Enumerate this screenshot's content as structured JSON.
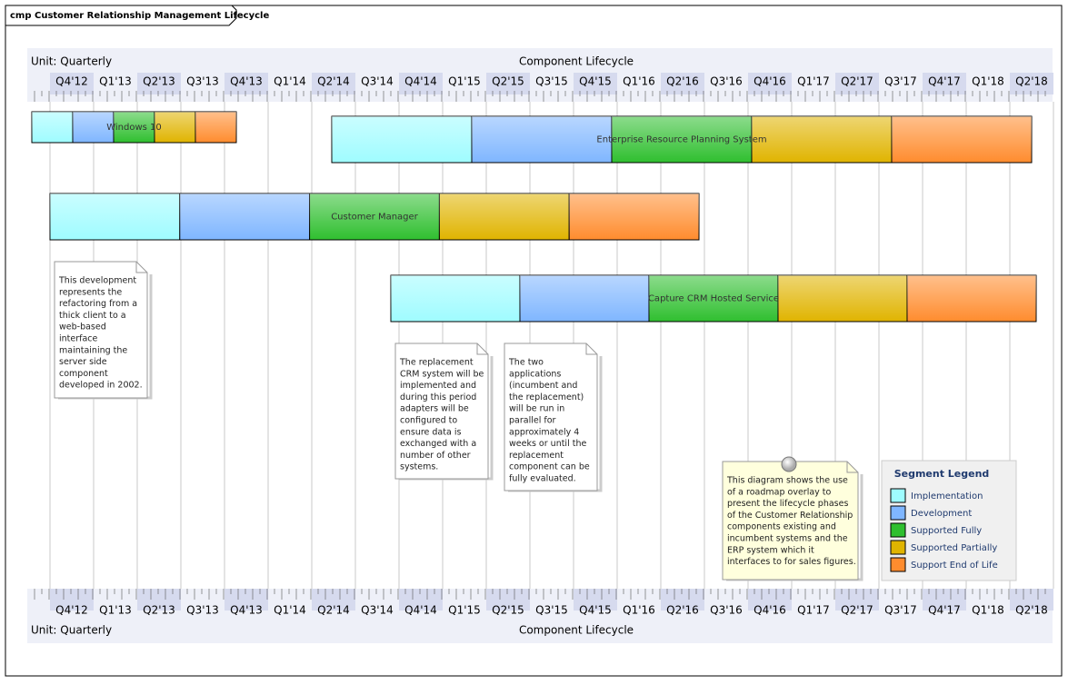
{
  "frame_title": "cmp Customer Relationship Management Lifecycle",
  "timeline": {
    "unit": "Unit: Quarterly",
    "title": "Component Lifecycle",
    "quarters": [
      "Q4'12",
      "Q1'13",
      "Q2'13",
      "Q3'13",
      "Q4'13",
      "Q1'14",
      "Q2'14",
      "Q3'14",
      "Q4'14",
      "Q1'15",
      "Q2'15",
      "Q3'15",
      "Q4'15",
      "Q1'16",
      "Q2'16",
      "Q3'16",
      "Q4'16",
      "Q1'17",
      "Q2'17",
      "Q3'17",
      "Q4'17",
      "Q1'18",
      "Q2'18"
    ]
  },
  "components": [
    {
      "name": "Windows 10"
    },
    {
      "name": "Enterprise Resource Planning System"
    },
    {
      "name": "Customer Manager"
    },
    {
      "name": "Capture CRM Hosted Service"
    }
  ],
  "notes": [
    {
      "lines": [
        "This development",
        "represents the",
        "refactoring from a",
        "thick client to a",
        "web-based",
        "interface",
        "maintaining the",
        "server side",
        "component",
        "developed in 2002."
      ]
    },
    {
      "lines": [
        "The replacement",
        "CRM system will be",
        "implemented and",
        "during this period",
        "adapters will be",
        "configured to",
        "ensure data is",
        "exchanged with a",
        "number of other",
        "systems."
      ]
    },
    {
      "lines": [
        "The two",
        "applications",
        "(incumbent and",
        "the replacement)",
        "will be run in",
        "parallel for",
        "approximately 4",
        "weeks or until the",
        "replacement",
        "component can be",
        "fully evaluated."
      ]
    },
    {
      "lines": [
        "This diagram shows the use",
        "of a roadmap overlay to",
        "present the lifecycle phases",
        "of the Customer Relationship",
        "components existing and",
        "incumbent systems and the",
        "ERP system which it",
        "interfaces to for sales figures."
      ]
    }
  ],
  "legend": {
    "title": "Segment Legend",
    "items": [
      {
        "name": "Implementation",
        "color": "#9ffcff"
      },
      {
        "name": "Development",
        "color": "#7fb6ff"
      },
      {
        "name": "Supported Fully",
        "color": "#2fbf2f"
      },
      {
        "name": "Supported Partially",
        "color": "#e0b400"
      },
      {
        "name": "Support End of Life",
        "color": "#ff8c2e"
      }
    ]
  }
}
